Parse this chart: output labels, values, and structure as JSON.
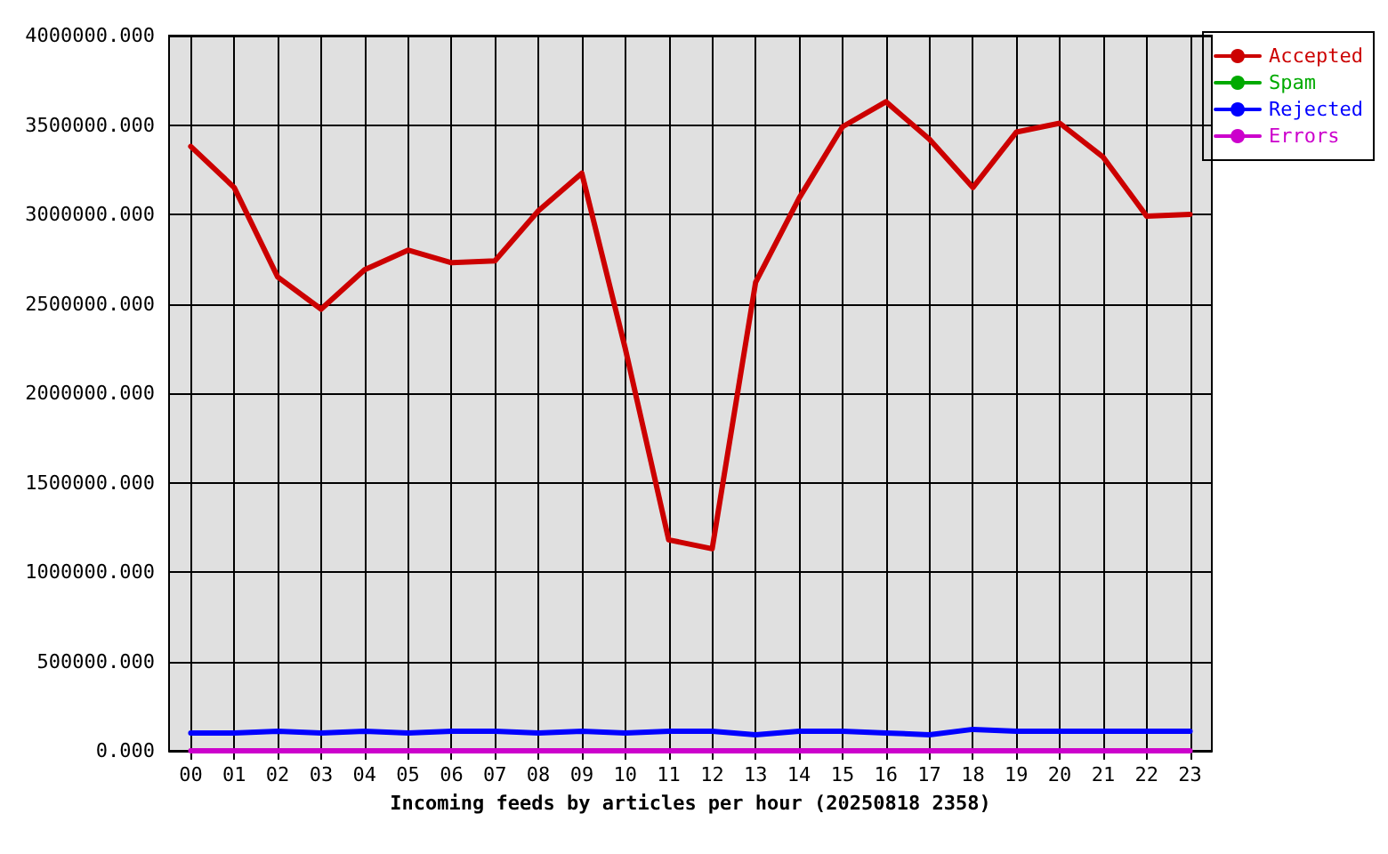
{
  "chart_data": {
    "type": "line",
    "xlabel": "Incoming feeds by articles per hour (20250818 2358)",
    "categories": [
      "00",
      "01",
      "02",
      "03",
      "04",
      "05",
      "06",
      "07",
      "08",
      "09",
      "10",
      "11",
      "12",
      "13",
      "14",
      "15",
      "16",
      "17",
      "18",
      "19",
      "20",
      "21",
      "22",
      "23"
    ],
    "series": [
      {
        "name": "Accepted",
        "color": "#cc0000",
        "values": [
          3380000,
          3150000,
          2650000,
          2470000,
          2690000,
          2800000,
          2730000,
          2740000,
          3020000,
          3230000,
          2250000,
          1180000,
          1130000,
          2620000,
          3090000,
          3490000,
          3630000,
          3420000,
          3150000,
          3460000,
          3510000,
          3320000,
          2990000,
          3000000
        ]
      },
      {
        "name": "Spam",
        "color": "#00aa00",
        "values": [
          null,
          null,
          null,
          null,
          null,
          null,
          null,
          null,
          null,
          null,
          null,
          null,
          null,
          null,
          null,
          null,
          null,
          null,
          null,
          null,
          null,
          null,
          null,
          null
        ]
      },
      {
        "name": "Rejected",
        "color": "#0000ff",
        "values": [
          100000,
          100000,
          110000,
          100000,
          110000,
          100000,
          110000,
          110000,
          100000,
          110000,
          100000,
          110000,
          110000,
          90000,
          110000,
          110000,
          100000,
          90000,
          120000,
          110000,
          110000,
          110000,
          110000,
          110000
        ]
      },
      {
        "name": "Errors",
        "color": "#cc00cc",
        "values": [
          0,
          0,
          0,
          0,
          0,
          0,
          0,
          0,
          0,
          0,
          0,
          0,
          0,
          0,
          0,
          0,
          0,
          0,
          0,
          0,
          0,
          0,
          0,
          0
        ]
      }
    ],
    "ylim": [
      0,
      4000000
    ],
    "yticks": [
      {
        "value": 0,
        "label": "0.000"
      },
      {
        "value": 500000,
        "label": "500000.000"
      },
      {
        "value": 1000000,
        "label": "1000000.000"
      },
      {
        "value": 1500000,
        "label": "1500000.000"
      },
      {
        "value": 2000000,
        "label": "2000000.000"
      },
      {
        "value": 2500000,
        "label": "2500000.000"
      },
      {
        "value": 3000000,
        "label": "3000000.000"
      },
      {
        "value": 3500000,
        "label": "3500000.000"
      },
      {
        "value": 4000000,
        "label": "4000000.000"
      }
    ],
    "grid": true,
    "legend": "top right",
    "marker": "none",
    "line_style": "solid"
  }
}
